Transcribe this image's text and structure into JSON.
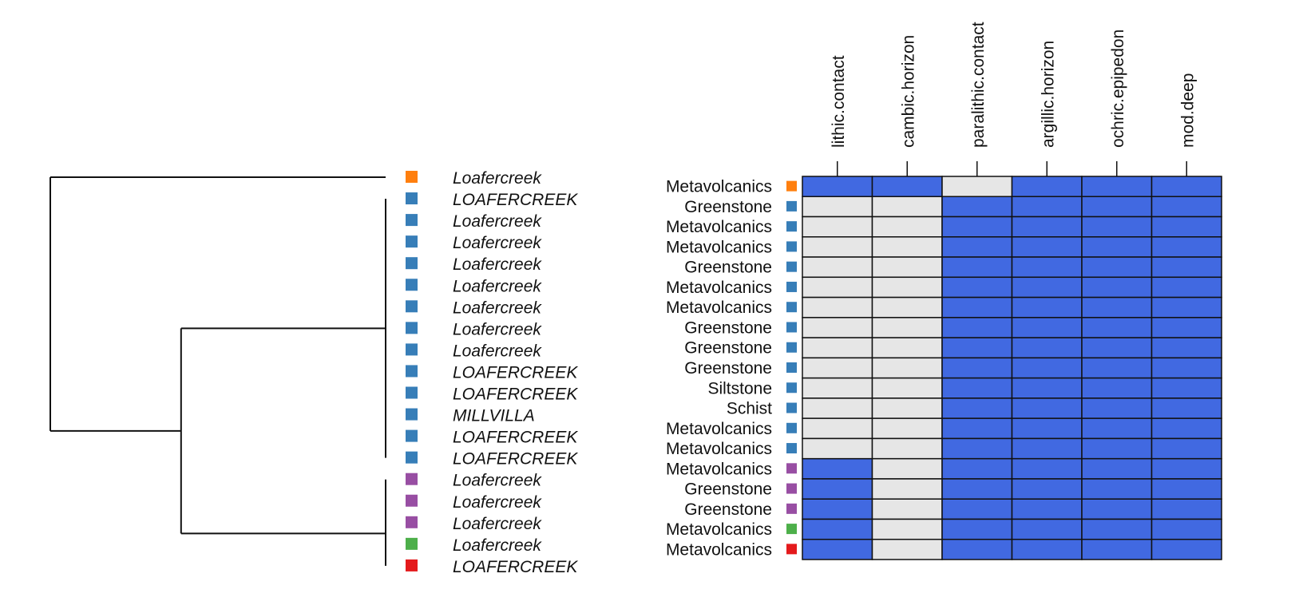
{
  "colors": {
    "present": "#4169e1",
    "absent": "#e6e6e6",
    "grid": "#111111",
    "tree": "#111111"
  },
  "chart_data": {
    "type": "heatmap",
    "title": "",
    "columns": [
      "lithic.contact",
      "cambic.horizon",
      "paralithic.contact",
      "argillic.horizon",
      "ochric.epipedon",
      "mod.deep"
    ],
    "rows": [
      {
        "label": "Metavolcanics",
        "group_color": "#ff7f0e",
        "values": [
          1,
          1,
          0,
          1,
          1,
          1
        ]
      },
      {
        "label": "Greenstone",
        "group_color": "#377eb8",
        "values": [
          0,
          0,
          1,
          1,
          1,
          1
        ]
      },
      {
        "label": "Metavolcanics",
        "group_color": "#377eb8",
        "values": [
          0,
          0,
          1,
          1,
          1,
          1
        ]
      },
      {
        "label": "Metavolcanics",
        "group_color": "#377eb8",
        "values": [
          0,
          0,
          1,
          1,
          1,
          1
        ]
      },
      {
        "label": "Greenstone",
        "group_color": "#377eb8",
        "values": [
          0,
          0,
          1,
          1,
          1,
          1
        ]
      },
      {
        "label": "Metavolcanics",
        "group_color": "#377eb8",
        "values": [
          0,
          0,
          1,
          1,
          1,
          1
        ]
      },
      {
        "label": "Metavolcanics",
        "group_color": "#377eb8",
        "values": [
          0,
          0,
          1,
          1,
          1,
          1
        ]
      },
      {
        "label": "Greenstone",
        "group_color": "#377eb8",
        "values": [
          0,
          0,
          1,
          1,
          1,
          1
        ]
      },
      {
        "label": "Greenstone",
        "group_color": "#377eb8",
        "values": [
          0,
          0,
          1,
          1,
          1,
          1
        ]
      },
      {
        "label": "Greenstone",
        "group_color": "#377eb8",
        "values": [
          0,
          0,
          1,
          1,
          1,
          1
        ]
      },
      {
        "label": "Siltstone",
        "group_color": "#377eb8",
        "values": [
          0,
          0,
          1,
          1,
          1,
          1
        ]
      },
      {
        "label": "Schist",
        "group_color": "#377eb8",
        "values": [
          0,
          0,
          1,
          1,
          1,
          1
        ]
      },
      {
        "label": "Metavolcanics",
        "group_color": "#377eb8",
        "values": [
          0,
          0,
          1,
          1,
          1,
          1
        ]
      },
      {
        "label": "Metavolcanics",
        "group_color": "#377eb8",
        "values": [
          0,
          0,
          1,
          1,
          1,
          1
        ]
      },
      {
        "label": "Metavolcanics",
        "group_color": "#984ea3",
        "values": [
          1,
          0,
          1,
          1,
          1,
          1
        ]
      },
      {
        "label": "Greenstone",
        "group_color": "#984ea3",
        "values": [
          1,
          0,
          1,
          1,
          1,
          1
        ]
      },
      {
        "label": "Greenstone",
        "group_color": "#984ea3",
        "values": [
          1,
          0,
          1,
          1,
          1,
          1
        ]
      },
      {
        "label": "Metavolcanics",
        "group_color": "#4daf4a",
        "values": [
          1,
          0,
          1,
          1,
          1,
          1
        ]
      },
      {
        "label": "Metavolcanics",
        "group_color": "#e41a1c",
        "values": [
          1,
          0,
          1,
          1,
          1,
          1
        ]
      }
    ],
    "dendrogram": {
      "tips": [
        {
          "label": "Loafercreek",
          "color": "#ff7f0e"
        },
        {
          "label": "LOAFERCREEK",
          "color": "#377eb8"
        },
        {
          "label": "Loafercreek",
          "color": "#377eb8"
        },
        {
          "label": "Loafercreek",
          "color": "#377eb8"
        },
        {
          "label": "Loafercreek",
          "color": "#377eb8"
        },
        {
          "label": "Loafercreek",
          "color": "#377eb8"
        },
        {
          "label": "Loafercreek",
          "color": "#377eb8"
        },
        {
          "label": "Loafercreek",
          "color": "#377eb8"
        },
        {
          "label": "Loafercreek",
          "color": "#377eb8"
        },
        {
          "label": "LOAFERCREEK",
          "color": "#377eb8"
        },
        {
          "label": "LOAFERCREEK",
          "color": "#377eb8"
        },
        {
          "label": "MILLVILLA",
          "color": "#377eb8"
        },
        {
          "label": "LOAFERCREEK",
          "color": "#377eb8"
        },
        {
          "label": "LOAFERCREEK",
          "color": "#377eb8"
        },
        {
          "label": "Loafercreek",
          "color": "#984ea3"
        },
        {
          "label": "Loafercreek",
          "color": "#984ea3"
        },
        {
          "label": "Loafercreek",
          "color": "#984ea3"
        },
        {
          "label": "Loafercreek",
          "color": "#4daf4a"
        },
        {
          "label": "LOAFERCREEK",
          "color": "#e41a1c"
        }
      ],
      "clusters": [
        {
          "name": "c1",
          "members": [
            1,
            2,
            3,
            4,
            5,
            6,
            7,
            8,
            9,
            10,
            11,
            12,
            13
          ],
          "height": 0.0
        },
        {
          "name": "c3",
          "members": [
            14,
            15,
            16
          ],
          "height": 0.0
        },
        {
          "name": "c4",
          "members": [
            "c3",
            17,
            18
          ],
          "height": 0.0
        },
        {
          "name": "c5",
          "members": [
            "c1",
            "c4"
          ],
          "height": 0.61
        },
        {
          "name": "root",
          "members": [
            0,
            "c5"
          ],
          "height": 1.0
        }
      ]
    }
  }
}
